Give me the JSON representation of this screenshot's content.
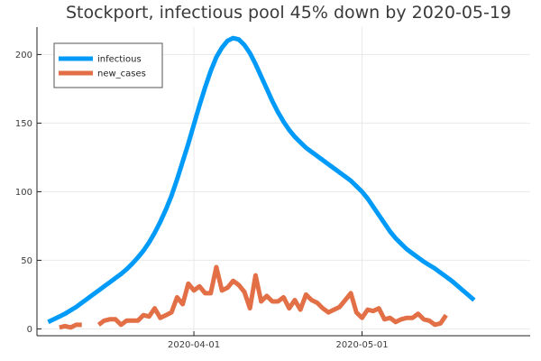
{
  "chart_data": {
    "type": "line",
    "title": "Stockport, infectious pool 45% down by 2020-05-19",
    "xlabel": "",
    "ylabel": "",
    "x_start": "2020-03-06",
    "x_end": "2020-05-28",
    "xlim": [
      "2020-03-04",
      "2020-05-31"
    ],
    "ylim": [
      -5,
      220
    ],
    "x_ticks": [
      {
        "date": "2020-04-01",
        "label": "2020-04-01"
      },
      {
        "date": "2020-05-01",
        "label": "2020-05-01"
      }
    ],
    "y_ticks": [
      0,
      50,
      100,
      150,
      200
    ],
    "y_tick_labels": [
      "0",
      "50",
      "100",
      "150",
      "200"
    ],
    "grid": true,
    "legend_position": "top-left",
    "series": [
      {
        "name": "infectious",
        "color": "#009af9",
        "values": [
          5,
          7,
          9,
          11,
          13.5,
          16,
          19,
          22,
          25,
          28,
          31,
          34,
          37,
          40,
          43.5,
          47.5,
          52,
          57,
          63,
          70,
          78,
          87,
          97,
          109,
          122,
          135,
          149,
          163,
          176,
          188,
          198,
          205,
          210,
          212,
          211,
          207,
          201,
          193,
          184,
          175,
          166,
          158,
          151,
          145,
          140,
          136,
          132,
          129,
          126,
          123,
          120,
          117,
          114,
          111,
          108,
          104,
          100,
          95,
          89,
          83,
          77,
          71,
          66,
          62,
          58,
          55,
          52,
          49,
          46.5,
          44,
          41,
          38,
          35,
          31.5,
          28,
          24.5,
          21
        ]
      },
      {
        "name": "new_cases",
        "color": "#e26f46",
        "values": [
          null,
          null,
          1,
          2,
          1,
          3,
          3,
          null,
          null,
          3,
          6,
          7,
          7,
          3,
          6,
          6,
          6,
          10,
          9,
          15,
          8,
          10,
          12,
          23,
          18,
          33,
          28,
          31,
          26,
          26,
          45,
          28,
          30,
          35,
          32,
          27,
          15,
          39,
          20,
          24,
          20,
          20,
          23,
          15,
          21,
          14,
          25,
          21,
          19,
          15,
          12,
          14,
          16,
          21,
          26,
          12,
          8,
          14,
          13,
          15,
          7,
          8,
          5,
          7,
          8,
          8,
          11,
          7,
          6,
          3,
          4,
          10
        ]
      }
    ]
  }
}
